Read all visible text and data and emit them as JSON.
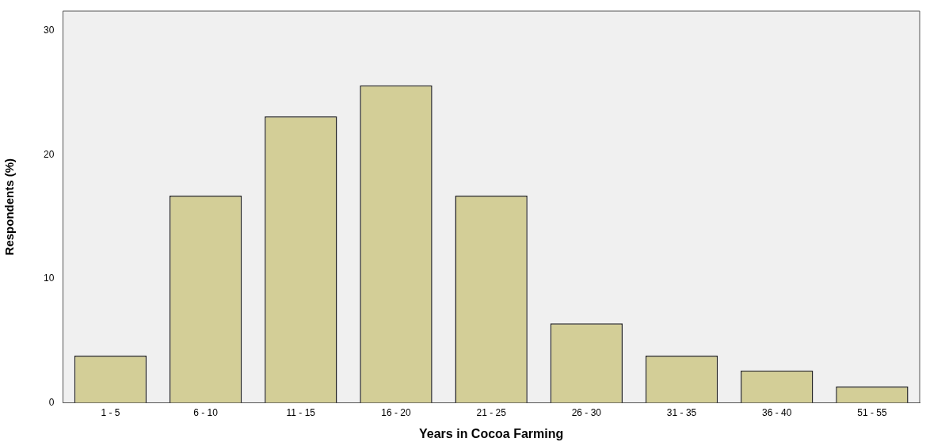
{
  "chart_data": {
    "type": "bar",
    "xlabel": "Years in Cocoa Farming",
    "ylabel": "Respondents (%)",
    "categories": [
      "1 - 5",
      "6 - 10",
      "11 - 15",
      "16 - 20",
      "21 - 25",
      "26 - 30",
      "31 - 35",
      "36 - 40",
      "51 - 55"
    ],
    "values": [
      3.8,
      16.7,
      23.1,
      25.6,
      16.7,
      6.4,
      3.8,
      2.6,
      1.3
    ],
    "color": "#d3ce97",
    "ylim": [
      0,
      31.6
    ],
    "yticks": [
      0,
      10,
      20,
      30
    ],
    "grid": false,
    "legend": false
  }
}
